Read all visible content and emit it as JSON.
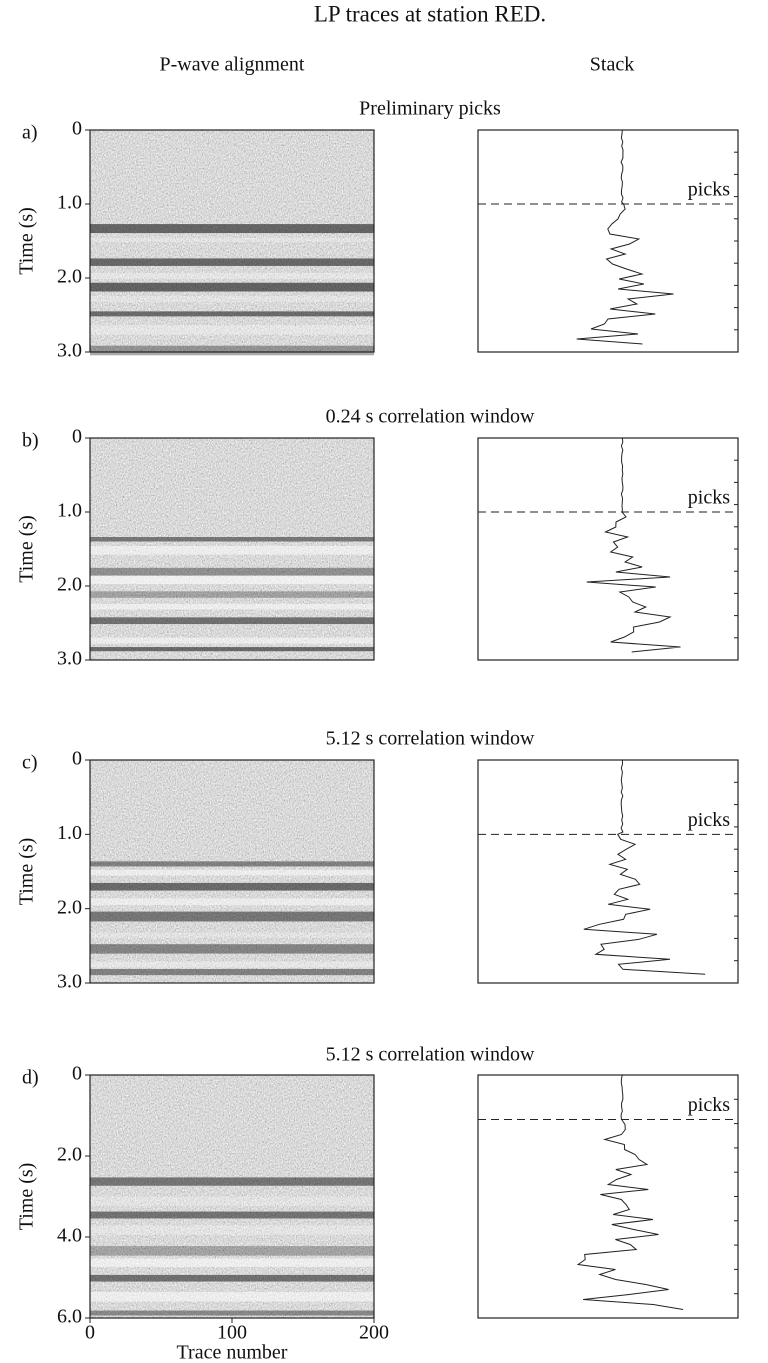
{
  "figure": {
    "title": "LP traces at station RED.",
    "left_header": "P-wave alignment",
    "right_header": "Stack"
  },
  "chart_data": [
    {
      "type": "image",
      "label": "a)",
      "title": "Preliminary picks",
      "ylabel": "Time (s)",
      "ylim": [
        0,
        3
      ],
      "yticks": [
        0,
        {
          "value": 1,
          "label": "1.0"
        },
        {
          "value": 2,
          "label": "2.0"
        },
        {
          "value": 3,
          "label": "3.0"
        }
      ],
      "annotation": "picks"
    },
    {
      "type": "image",
      "label": "b)",
      "title": "0.24 s correlation window",
      "ylabel": "Time (s)",
      "ylim": [
        0,
        3
      ],
      "yticks": [
        0,
        {
          "value": 1,
          "label": "1.0"
        },
        {
          "value": 2,
          "label": "2.0"
        },
        {
          "value": 3,
          "label": "3.0"
        }
      ],
      "annotation": "picks"
    },
    {
      "type": "image",
      "label": "c)",
      "title": "5.12 s correlation window",
      "ylabel": "Time (s)",
      "ylim": [
        0,
        3
      ],
      "yticks": [
        0,
        {
          "value": 1,
          "label": "1.0"
        },
        {
          "value": 2,
          "label": "2.0"
        },
        {
          "value": 3,
          "label": "3.0"
        }
      ],
      "annotation": "picks"
    },
    {
      "type": "image",
      "label": "d)",
      "title": "5.12 s correlation window",
      "ylabel": "Time (s)",
      "ylim": [
        0,
        6
      ],
      "yticks": [
        0,
        {
          "value": 2,
          "label": "2.0"
        },
        {
          "value": 4,
          "label": "4.0"
        },
        {
          "value": 6,
          "label": "6.0"
        }
      ],
      "annotation": "picks",
      "xlabel": "Trace number",
      "xlim": [
        0,
        200
      ],
      "xticks": [
        0,
        100,
        200
      ]
    }
  ]
}
